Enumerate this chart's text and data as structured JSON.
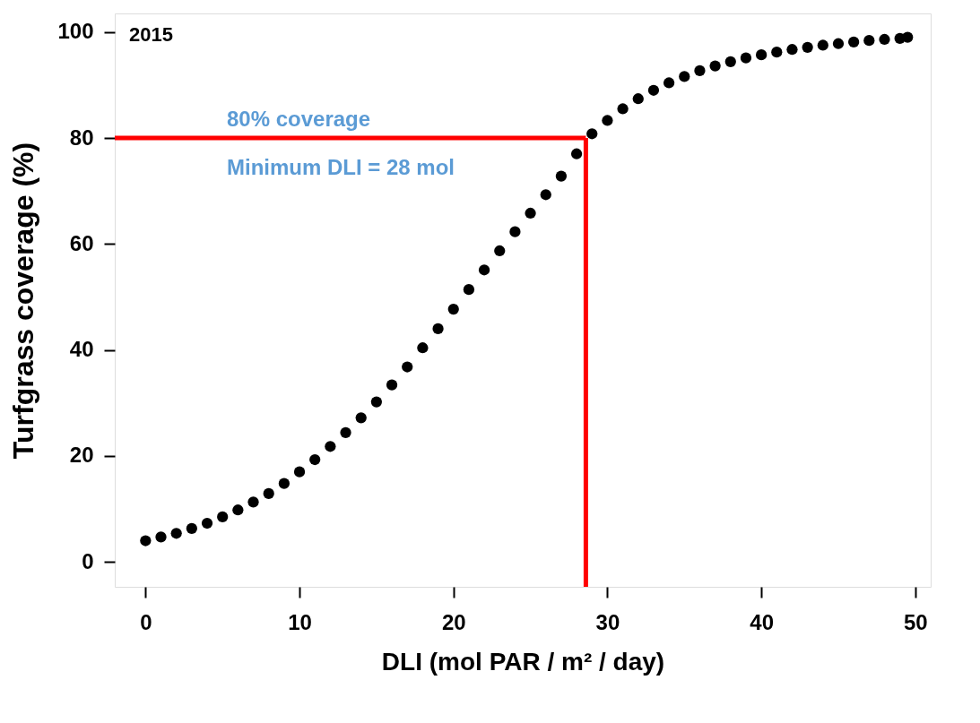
{
  "chart_data": {
    "type": "scatter",
    "xlabel": "DLI (mol PAR / m² / day)",
    "ylabel": "Turfgrass coverage (%)",
    "annotations": [
      "2015",
      "80% coverage",
      "Minimum DLI = 28 mol"
    ],
    "x": [
      0,
      1,
      2,
      3,
      4,
      5,
      6,
      7,
      8,
      9,
      10,
      11,
      12,
      13,
      14,
      15,
      16,
      17,
      18,
      19,
      20,
      21,
      22,
      23,
      24,
      25,
      26,
      27,
      28,
      29,
      30,
      31,
      32,
      33,
      34,
      35,
      36,
      37,
      38,
      39,
      40,
      41,
      42,
      43,
      44,
      45,
      46,
      47,
      48,
      49,
      49.5
    ],
    "series": [
      {
        "color": "#000000",
        "values": [
          4.0,
          4.7,
          5.4,
          6.3,
          7.3,
          8.5,
          9.8,
          11.3,
          12.9,
          14.8,
          17.0,
          19.3,
          21.8,
          24.4,
          27.2,
          30.2,
          33.4,
          36.8,
          40.4,
          44.0,
          47.7,
          51.4,
          55.1,
          58.7,
          62.3,
          65.8,
          69.3,
          72.8,
          77.0,
          80.8,
          83.3,
          85.5,
          87.4,
          89.0,
          90.4,
          91.6,
          92.7,
          93.6,
          94.4,
          95.1,
          95.7,
          96.2,
          96.7,
          97.1,
          97.5,
          97.8,
          98.1,
          98.4,
          98.6,
          98.8,
          99.0
        ]
      }
    ],
    "marker": "circle",
    "ref_lines": [
      {
        "axis": "y",
        "value": 80,
        "color": "#ff0000"
      },
      {
        "axis": "x",
        "value": 28.6,
        "color": "#ff0000"
      }
    ],
    "xlim": [
      -2,
      51
    ],
    "ylim": [
      -4.7,
      103.5
    ],
    "xticks": [
      0,
      10,
      20,
      30,
      40,
      50
    ],
    "yticks": [
      0,
      20,
      40,
      60,
      80,
      100
    ],
    "grid": false
  }
}
